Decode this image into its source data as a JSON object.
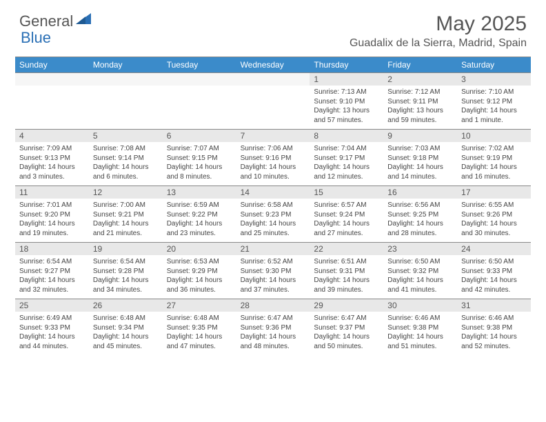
{
  "brand": {
    "part1": "General",
    "part2": "Blue",
    "accent_color": "#2a6fb5"
  },
  "title": "May 2025",
  "location": "Guadalix de la Sierra, Madrid, Spain",
  "colors": {
    "header_bg": "#3b8bca",
    "header_text": "#ffffff",
    "daynum_bg": "#e8e8e8",
    "border": "#888888",
    "body_text": "#444444"
  },
  "weekdays": [
    "Sunday",
    "Monday",
    "Tuesday",
    "Wednesday",
    "Thursday",
    "Friday",
    "Saturday"
  ],
  "weeks": [
    [
      null,
      null,
      null,
      null,
      {
        "n": "1",
        "sr": "7:13 AM",
        "ss": "9:10 PM",
        "dl": "13 hours and 57 minutes."
      },
      {
        "n": "2",
        "sr": "7:12 AM",
        "ss": "9:11 PM",
        "dl": "13 hours and 59 minutes."
      },
      {
        "n": "3",
        "sr": "7:10 AM",
        "ss": "9:12 PM",
        "dl": "14 hours and 1 minute."
      }
    ],
    [
      {
        "n": "4",
        "sr": "7:09 AM",
        "ss": "9:13 PM",
        "dl": "14 hours and 3 minutes."
      },
      {
        "n": "5",
        "sr": "7:08 AM",
        "ss": "9:14 PM",
        "dl": "14 hours and 6 minutes."
      },
      {
        "n": "6",
        "sr": "7:07 AM",
        "ss": "9:15 PM",
        "dl": "14 hours and 8 minutes."
      },
      {
        "n": "7",
        "sr": "7:06 AM",
        "ss": "9:16 PM",
        "dl": "14 hours and 10 minutes."
      },
      {
        "n": "8",
        "sr": "7:04 AM",
        "ss": "9:17 PM",
        "dl": "14 hours and 12 minutes."
      },
      {
        "n": "9",
        "sr": "7:03 AM",
        "ss": "9:18 PM",
        "dl": "14 hours and 14 minutes."
      },
      {
        "n": "10",
        "sr": "7:02 AM",
        "ss": "9:19 PM",
        "dl": "14 hours and 16 minutes."
      }
    ],
    [
      {
        "n": "11",
        "sr": "7:01 AM",
        "ss": "9:20 PM",
        "dl": "14 hours and 19 minutes."
      },
      {
        "n": "12",
        "sr": "7:00 AM",
        "ss": "9:21 PM",
        "dl": "14 hours and 21 minutes."
      },
      {
        "n": "13",
        "sr": "6:59 AM",
        "ss": "9:22 PM",
        "dl": "14 hours and 23 minutes."
      },
      {
        "n": "14",
        "sr": "6:58 AM",
        "ss": "9:23 PM",
        "dl": "14 hours and 25 minutes."
      },
      {
        "n": "15",
        "sr": "6:57 AM",
        "ss": "9:24 PM",
        "dl": "14 hours and 27 minutes."
      },
      {
        "n": "16",
        "sr": "6:56 AM",
        "ss": "9:25 PM",
        "dl": "14 hours and 28 minutes."
      },
      {
        "n": "17",
        "sr": "6:55 AM",
        "ss": "9:26 PM",
        "dl": "14 hours and 30 minutes."
      }
    ],
    [
      {
        "n": "18",
        "sr": "6:54 AM",
        "ss": "9:27 PM",
        "dl": "14 hours and 32 minutes."
      },
      {
        "n": "19",
        "sr": "6:54 AM",
        "ss": "9:28 PM",
        "dl": "14 hours and 34 minutes."
      },
      {
        "n": "20",
        "sr": "6:53 AM",
        "ss": "9:29 PM",
        "dl": "14 hours and 36 minutes."
      },
      {
        "n": "21",
        "sr": "6:52 AM",
        "ss": "9:30 PM",
        "dl": "14 hours and 37 minutes."
      },
      {
        "n": "22",
        "sr": "6:51 AM",
        "ss": "9:31 PM",
        "dl": "14 hours and 39 minutes."
      },
      {
        "n": "23",
        "sr": "6:50 AM",
        "ss": "9:32 PM",
        "dl": "14 hours and 41 minutes."
      },
      {
        "n": "24",
        "sr": "6:50 AM",
        "ss": "9:33 PM",
        "dl": "14 hours and 42 minutes."
      }
    ],
    [
      {
        "n": "25",
        "sr": "6:49 AM",
        "ss": "9:33 PM",
        "dl": "14 hours and 44 minutes."
      },
      {
        "n": "26",
        "sr": "6:48 AM",
        "ss": "9:34 PM",
        "dl": "14 hours and 45 minutes."
      },
      {
        "n": "27",
        "sr": "6:48 AM",
        "ss": "9:35 PM",
        "dl": "14 hours and 47 minutes."
      },
      {
        "n": "28",
        "sr": "6:47 AM",
        "ss": "9:36 PM",
        "dl": "14 hours and 48 minutes."
      },
      {
        "n": "29",
        "sr": "6:47 AM",
        "ss": "9:37 PM",
        "dl": "14 hours and 50 minutes."
      },
      {
        "n": "30",
        "sr": "6:46 AM",
        "ss": "9:38 PM",
        "dl": "14 hours and 51 minutes."
      },
      {
        "n": "31",
        "sr": "6:46 AM",
        "ss": "9:38 PM",
        "dl": "14 hours and 52 minutes."
      }
    ]
  ],
  "labels": {
    "sunrise": "Sunrise:",
    "sunset": "Sunset:",
    "daylight": "Daylight:"
  }
}
